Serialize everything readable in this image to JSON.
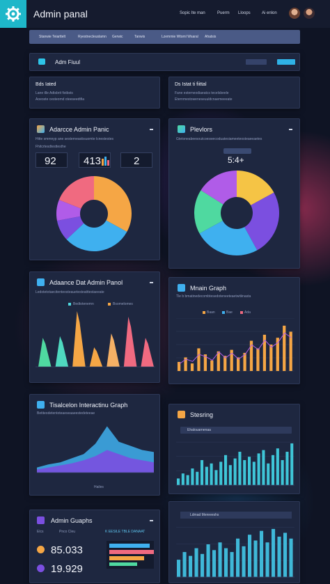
{
  "app": {
    "title": "Admin panal"
  },
  "topnav": [
    "Sopic Ite man",
    "Puerm",
    "Lloops",
    "Ai enlon"
  ],
  "subnav": [
    "Stanwie Teiarttelt",
    "Ryestnecleuslamn",
    "Gerwic",
    "Tanwis",
    "Lzemmie Wtoml Wsaral",
    "Ahatsis"
  ],
  "filter_bar": {
    "title": "Adm Fiuul"
  },
  "info_left": {
    "title": "Bds Iated",
    "lines": [
      "Lane tlle Adtsbrit fistbsts",
      "Aoeoste cesteomd oteeseedtfia"
    ]
  },
  "info_right": {
    "title": "Ds Istat ti fiittal",
    "lines": [
      "Fane esterneodiaeatcs tecelsbeele",
      "Eternmestoweneseuuldcnaemeeeate"
    ]
  },
  "panel_pie_left": {
    "title": "Adarcce Admin Panic",
    "subtitle": "Hitte smmnyp ane sesterneaobsuomte lcnestestes",
    "label": "Fhitcrtesdtesttesthe",
    "stats": [
      "92",
      "413",
      "2"
    ]
  },
  "panel_pie_right": {
    "title": "Plevlors",
    "subtitle": "Gtetoneabeesoutcoeswecoduatesiameeteosteaeeaetes",
    "stat": "5:4+"
  },
  "panel_mountain": {
    "title": "Adaance Dat Admin Panol",
    "subtitle": "Ledotetotaecitenteosteauetesteatttestaeeate",
    "legend": [
      "Bedtotenemn",
      "Bsomelomes"
    ]
  },
  "panel_main_graph": {
    "title": "Mnain Graph",
    "subtitle": "Tle b bmatinedecombtesedoteneeteaetwitiinasta",
    "legend": [
      "Baan",
      "Bae",
      "Ada"
    ]
  },
  "panel_area": {
    "title": "Tisalcelon Interactinu Graph",
    "subtitle": "Betiteodetentoteaeseaaeestedeteeae",
    "footer": "Hailes"
  },
  "panel_steering": {
    "title": "Stesring",
    "label": "Ehalouarnenaa"
  },
  "panel_admin_graphs": {
    "title": "Admin Guaphs",
    "label_small": "Elcs",
    "label_p": "Pnco Cleu",
    "banner": "K EESILE TBLE DANAAT",
    "stat1": "85.033",
    "stat2": "19.929"
  },
  "panel_bottom_right": {
    "label": "Ldmad Mereeeshs"
  },
  "colors": {
    "accent_cyan": "#1eb7c9",
    "pie": [
      "#f5a645",
      "#7b4fe0",
      "#3fb0ef",
      "#4fd9a0",
      "#f06a80",
      "#ff8a3c"
    ]
  },
  "chart_data": [
    {
      "type": "pie",
      "title": "Adarcce Admin Panic",
      "values": [
        33,
        30,
        9,
        9,
        19
      ]
    },
    {
      "type": "pie",
      "title": "Plevlors",
      "values": [
        17,
        25,
        25,
        17,
        16
      ]
    },
    {
      "type": "bar",
      "title": "Adaance Dat Admin Panol",
      "categories": [
        "1",
        "2",
        "3",
        "4",
        "5",
        "6",
        "7"
      ],
      "values": [
        52,
        55,
        100,
        35,
        60,
        90,
        52
      ]
    },
    {
      "type": "bar",
      "title": "Mnain Graph",
      "series": [
        {
          "name": "Baan",
          "values": [
            12,
            18,
            10,
            30,
            22,
            14,
            26,
            20,
            28,
            18,
            24,
            40,
            30,
            48,
            35,
            44,
            60,
            52
          ]
        },
        {
          "name": "Bae",
          "values": [
            6,
            10,
            8,
            14,
            12,
            9,
            16,
            11,
            15,
            10,
            14,
            22,
            18,
            26,
            20,
            24,
            32,
            28
          ]
        }
      ]
    },
    {
      "type": "area",
      "title": "Tisalcelon Interactinu Graph",
      "x": [
        0,
        1,
        2,
        3,
        4,
        5,
        6,
        7,
        8,
        9,
        10
      ],
      "series": [
        {
          "values": [
            5,
            8,
            10,
            14,
            18,
            28,
            45,
            30,
            26,
            22,
            20
          ]
        },
        {
          "values": [
            3,
            5,
            7,
            9,
            12,
            16,
            22,
            18,
            14,
            12,
            10
          ]
        }
      ]
    },
    {
      "type": "bar",
      "title": "Stesring",
      "values": [
        8,
        14,
        12,
        20,
        16,
        30,
        22,
        26,
        18,
        28,
        36,
        24,
        32,
        40,
        30,
        34,
        28,
        38,
        42,
        26,
        36,
        44,
        30,
        40,
        50
      ]
    },
    {
      "type": "bar",
      "title": "Ldmad Mereeeshs",
      "values": [
        18,
        26,
        22,
        30,
        24,
        34,
        28,
        36,
        30,
        26,
        40,
        32,
        44,
        38,
        48,
        36,
        50,
        42,
        46,
        40
      ]
    }
  ]
}
